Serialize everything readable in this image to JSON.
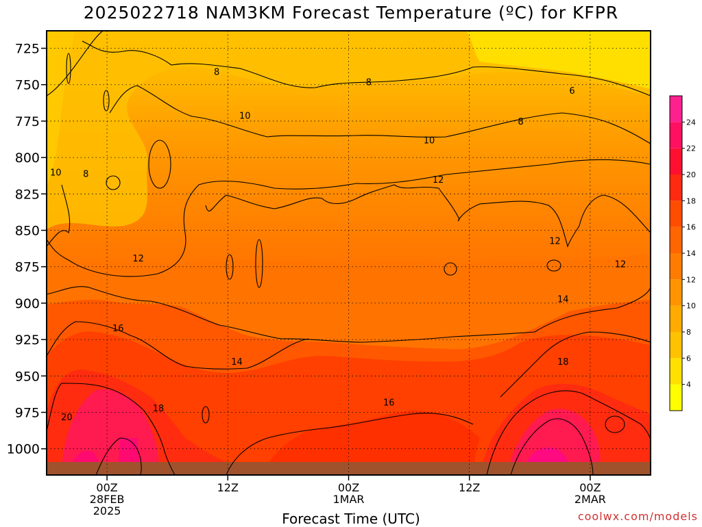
{
  "title": "2025022718 NAM3KM Forecast Temperature (ºC) for KFPR",
  "credit": "coolwx.com/models",
  "chart_data": {
    "type": "heatmap",
    "title": "2025022718 NAM3KM Forecast Temperature (ºC) for KFPR",
    "xlabel": "Forecast Time (UTC)",
    "ylabel": "",
    "y_ticks": [
      725,
      750,
      775,
      800,
      825,
      850,
      875,
      900,
      925,
      950,
      975,
      1000
    ],
    "ylim": [
      1018,
      713
    ],
    "x_ticks": [
      {
        "label": [
          "00Z",
          "28FEB",
          "2025"
        ],
        "hour": 6
      },
      {
        "label": [
          "12Z"
        ],
        "hour": 18
      },
      {
        "label": [
          "00Z",
          "1MAR"
        ],
        "hour": 30
      },
      {
        "label": [
          "12Z"
        ],
        "hour": 42
      },
      {
        "label": [
          "00Z",
          "2MAR"
        ],
        "hour": 54
      }
    ],
    "xlim": [
      0,
      60
    ],
    "grid": true,
    "colorbar": {
      "ticks": [
        4,
        6,
        8,
        10,
        12,
        14,
        16,
        18,
        20,
        22,
        24
      ],
      "colors": [
        "#ffff00",
        "#ffe000",
        "#ffc200",
        "#ffab00",
        "#ff9400",
        "#ff7c00",
        "#ff6500",
        "#ff4d00",
        "#ff2a10",
        "#ff1030",
        "#ff1060",
        "#ff2090"
      ]
    },
    "contour_labels": [
      {
        "text": "8",
        "hour": 16.9,
        "p": 741
      },
      {
        "text": "8",
        "hour": 32.0,
        "p": 748
      },
      {
        "text": "6",
        "hour": 52.2,
        "p": 754
      },
      {
        "text": "10",
        "hour": 19.7,
        "p": 771
      },
      {
        "text": "8",
        "hour": 47.1,
        "p": 775
      },
      {
        "text": "10",
        "hour": 38.0,
        "p": 788
      },
      {
        "text": "10",
        "hour": 0.9,
        "p": 810
      },
      {
        "text": "8",
        "hour": 3.9,
        "p": 811
      },
      {
        "text": "12",
        "hour": 38.9,
        "p": 815
      },
      {
        "text": "12",
        "hour": 9.1,
        "p": 869
      },
      {
        "text": "12",
        "hour": 50.5,
        "p": 857
      },
      {
        "text": "12",
        "hour": 57.0,
        "p": 873
      },
      {
        "text": "14",
        "hour": 51.3,
        "p": 897
      },
      {
        "text": "16",
        "hour": 7.1,
        "p": 917
      },
      {
        "text": "14",
        "hour": 18.9,
        "p": 940
      },
      {
        "text": "18",
        "hour": 51.3,
        "p": 940
      },
      {
        "text": "16",
        "hour": 34.0,
        "p": 968
      },
      {
        "text": "20",
        "hour": 2.0,
        "p": 978
      },
      {
        "text": "18",
        "hour": 11.1,
        "p": 972
      }
    ]
  }
}
